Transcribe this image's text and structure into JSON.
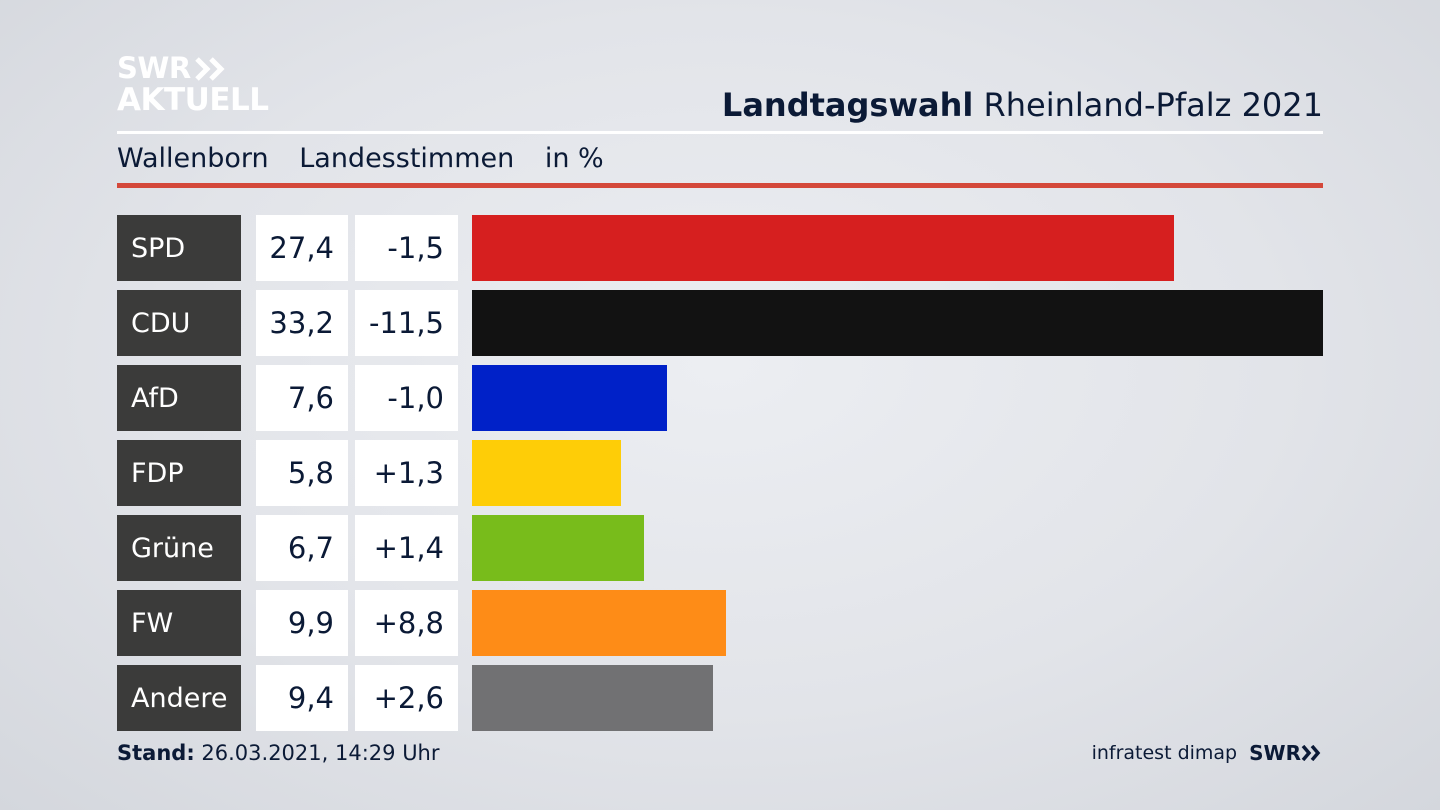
{
  "logo": {
    "line1": "SWR",
    "line2": "AKTUELL"
  },
  "header": {
    "title_bold": "Landtagswahl",
    "title_rest": "Rheinland-Pfalz 2021"
  },
  "subheader": {
    "place": "Wallenborn",
    "measure": "Landesstimmen",
    "unit": "in %"
  },
  "chart_data": {
    "type": "bar",
    "orientation": "horizontal",
    "categories": [
      "SPD",
      "CDU",
      "AfD",
      "FDP",
      "Grüne",
      "FW",
      "Andere"
    ],
    "values": [
      27.4,
      33.2,
      7.6,
      5.8,
      6.7,
      9.9,
      9.4
    ],
    "value_labels": [
      "27,4",
      "33,2",
      "7,6",
      "5,8",
      "6,7",
      "9,9",
      "9,4"
    ],
    "changes": [
      -1.5,
      -11.5,
      -1.0,
      1.3,
      1.4,
      8.8,
      2.6
    ],
    "change_labels": [
      "-1,5",
      "-11,5",
      "-1,0",
      "+1,3",
      "+1,4",
      "+8,8",
      "+2,6"
    ],
    "colors": [
      "#d61f1f",
      "#121212",
      "#0021c8",
      "#fecd07",
      "#78bc1b",
      "#fe8c17",
      "#717173"
    ],
    "xlim": [
      0,
      33.2
    ],
    "grid": false
  },
  "footer": {
    "stand_label": "Stand:",
    "stand_value": "26.03.2021, 14:29 Uhr",
    "source": "infratest dimap",
    "brand": "SWR"
  }
}
